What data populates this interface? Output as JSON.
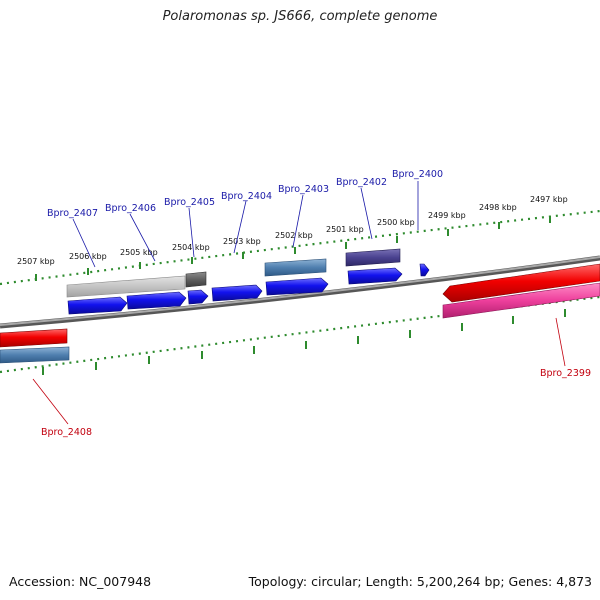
{
  "title": "Polaromonas sp. JS666, complete genome",
  "footer": {
    "accession": "Accession: NC_007948",
    "topology": "Topology: circular; Length: 5,200,264 bp; Genes: 4,873"
  },
  "kbp_labels": [
    "2507 kbp",
    "2506 kbp",
    "2505 kbp",
    "2504 kbp",
    "2503 kbp",
    "2502 kbp",
    "2501 kbp",
    "2500 kbp",
    "2499 kbp",
    "2498 kbp",
    "2497 kbp"
  ],
  "gene_labels": [
    {
      "text": "Bpro_2407",
      "strand": "forward"
    },
    {
      "text": "Bpro_2406",
      "strand": "forward"
    },
    {
      "text": "Bpro_2405",
      "strand": "forward"
    },
    {
      "text": "Bpro_2404",
      "strand": "forward"
    },
    {
      "text": "Bpro_2403",
      "strand": "forward"
    },
    {
      "text": "Bpro_2402",
      "strand": "forward"
    },
    {
      "text": "Bpro_2400",
      "strand": "forward"
    },
    {
      "text": "Bpro_2399",
      "strand": "reverse"
    },
    {
      "text": "Bpro_2408",
      "strand": "reverse"
    }
  ],
  "colors": {
    "backbone": "#8a8a8a",
    "tick": "#2e8b2e",
    "forward_label": "#1a1aa8",
    "reverse_label": "#c2000e"
  }
}
